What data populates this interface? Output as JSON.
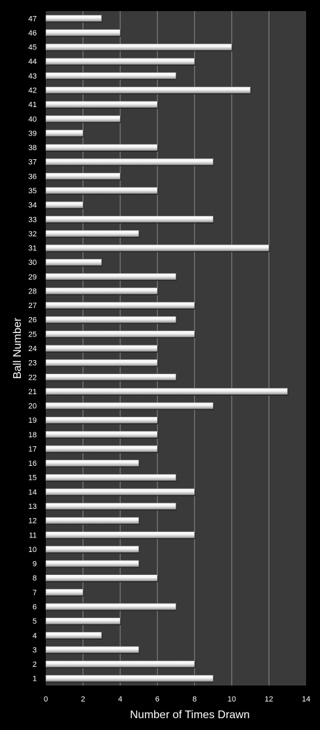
{
  "chart_data": {
    "type": "bar",
    "orientation": "horizontal",
    "title": "",
    "xlabel": "Number of Times Drawn",
    "ylabel": "Ball Number",
    "xlim": [
      0,
      14
    ],
    "x_ticks": [
      "0",
      "2",
      "4",
      "6",
      "8",
      "10",
      "12",
      "14"
    ],
    "grid": true,
    "legend": "none",
    "categories": [
      "1",
      "2",
      "3",
      "4",
      "5",
      "6",
      "7",
      "8",
      "9",
      "10",
      "11",
      "12",
      "13",
      "14",
      "15",
      "16",
      "17",
      "18",
      "19",
      "20",
      "21",
      "22",
      "23",
      "24",
      "25",
      "26",
      "27",
      "28",
      "29",
      "30",
      "31",
      "32",
      "33",
      "34",
      "35",
      "36",
      "37",
      "38",
      "39",
      "40",
      "41",
      "42",
      "43",
      "44",
      "45",
      "46",
      "47"
    ],
    "values": [
      9,
      8,
      5,
      3,
      4,
      7,
      2,
      6,
      5,
      5,
      8,
      5,
      7,
      8,
      7,
      5,
      6,
      6,
      6,
      9,
      13,
      7,
      6,
      6,
      8,
      7,
      8,
      6,
      7,
      3,
      12,
      5,
      9,
      2,
      6,
      4,
      9,
      6,
      2,
      4,
      6,
      11,
      7,
      8,
      10,
      4,
      3
    ],
    "colors": {
      "page_background": "#000000",
      "plot_background": "#3a3a3a",
      "gridline": "#8a8a8a",
      "bar_light": "#ffffff",
      "bar_dark": "#9a9a9a",
      "text": "#ffffff"
    }
  }
}
